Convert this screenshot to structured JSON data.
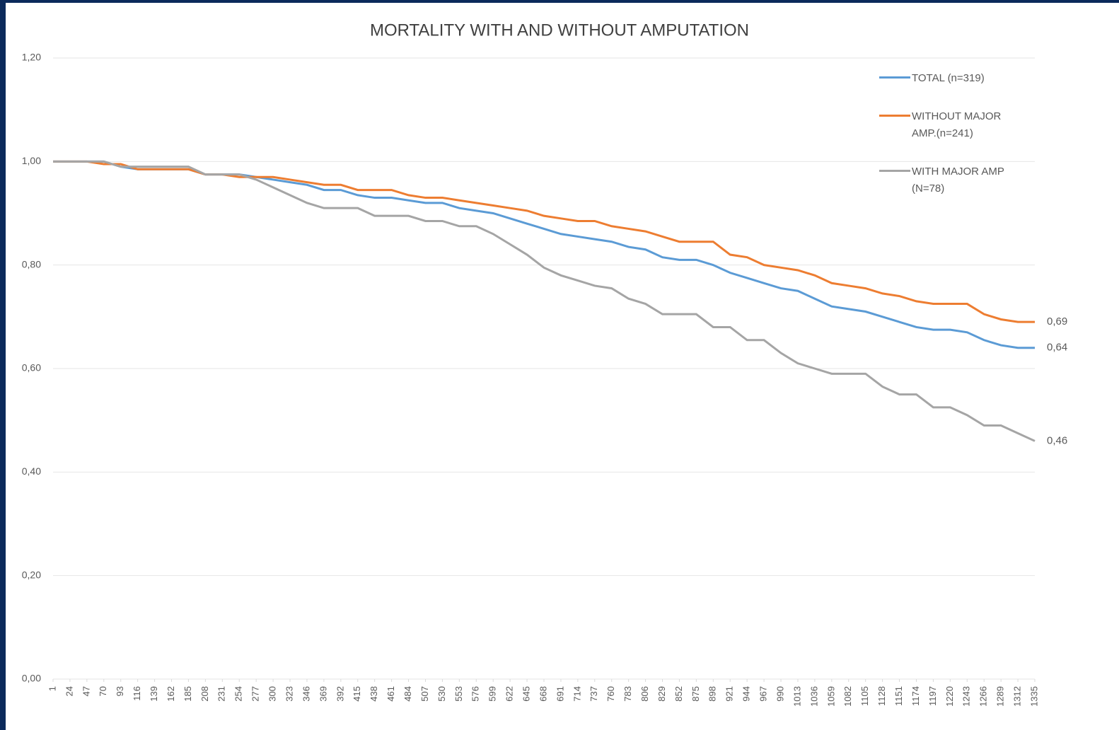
{
  "chart_data": {
    "type": "line",
    "title": "MORTALITY WITH AND WITHOUT AMPUTATION",
    "x": [
      1,
      24,
      47,
      70,
      93,
      116,
      139,
      162,
      185,
      208,
      231,
      254,
      277,
      300,
      323,
      346,
      369,
      392,
      415,
      438,
      461,
      484,
      507,
      530,
      553,
      576,
      599,
      622,
      645,
      668,
      691,
      714,
      737,
      760,
      783,
      806,
      829,
      852,
      875,
      898,
      921,
      944,
      967,
      990,
      1013,
      1036,
      1059,
      1082,
      1105,
      1128,
      1151,
      1174,
      1197,
      1220,
      1243,
      1266,
      1289,
      1312,
      1335
    ],
    "xlim": [
      1,
      1335
    ],
    "ylim": [
      0,
      1.2
    ],
    "yticks": [
      {
        "value": 0,
        "label": "0,00"
      },
      {
        "value": 0.2,
        "label": "0,20"
      },
      {
        "value": 0.4,
        "label": "0,40"
      },
      {
        "value": 0.6,
        "label": "0,60"
      },
      {
        "value": 0.8,
        "label": "0,80"
      },
      {
        "value": 1.0,
        "label": "1,00"
      },
      {
        "value": 1.2,
        "label": "1,20"
      }
    ],
    "grid": true,
    "legend": "right",
    "series": [
      {
        "name": "TOTAL (n=319)",
        "color": "#5b9bd5",
        "values": [
          1,
          1,
          1,
          1,
          0.99,
          0.985,
          0.985,
          0.985,
          0.985,
          0.975,
          0.975,
          0.975,
          0.97,
          0.965,
          0.96,
          0.955,
          0.945,
          0.945,
          0.935,
          0.93,
          0.93,
          0.925,
          0.92,
          0.92,
          0.91,
          0.905,
          0.9,
          0.89,
          0.88,
          0.87,
          0.86,
          0.855,
          0.85,
          0.845,
          0.835,
          0.83,
          0.815,
          0.81,
          0.81,
          0.8,
          0.785,
          0.775,
          0.765,
          0.755,
          0.75,
          0.735,
          0.72,
          0.715,
          0.71,
          0.7,
          0.69,
          0.68,
          0.675,
          0.675,
          0.67,
          0.655,
          0.645,
          0.64,
          0.64
        ],
        "value_labels": [
          null,
          null,
          null,
          null,
          null,
          null,
          null,
          null,
          null,
          null,
          null,
          null,
          null,
          null,
          null,
          null,
          null,
          null,
          null,
          null,
          null,
          null,
          null,
          null,
          null,
          null,
          null,
          null,
          null,
          null,
          null,
          null,
          null,
          null,
          null,
          null,
          null,
          null,
          null,
          null,
          null,
          null,
          null,
          null,
          null,
          null,
          null,
          null,
          null,
          null,
          null,
          null,
          null,
          null,
          null,
          null,
          null,
          null,
          "0,64"
        ]
      },
      {
        "name": "WITHOUT MAJOR AMP.(n=241)",
        "color": "#ed7d31",
        "values": [
          1,
          1,
          1,
          0.995,
          0.995,
          0.985,
          0.985,
          0.985,
          0.985,
          0.975,
          0.975,
          0.97,
          0.97,
          0.97,
          0.965,
          0.96,
          0.955,
          0.955,
          0.945,
          0.945,
          0.945,
          0.935,
          0.93,
          0.93,
          0.925,
          0.92,
          0.915,
          0.91,
          0.905,
          0.895,
          0.89,
          0.885,
          0.885,
          0.875,
          0.87,
          0.865,
          0.855,
          0.845,
          0.845,
          0.845,
          0.82,
          0.815,
          0.8,
          0.795,
          0.79,
          0.78,
          0.765,
          0.76,
          0.755,
          0.745,
          0.74,
          0.73,
          0.725,
          0.725,
          0.725,
          0.705,
          0.695,
          0.69,
          0.69
        ],
        "value_labels": [
          null,
          null,
          null,
          null,
          null,
          null,
          null,
          null,
          null,
          null,
          null,
          null,
          null,
          null,
          null,
          null,
          null,
          null,
          null,
          null,
          null,
          null,
          null,
          null,
          null,
          null,
          null,
          null,
          null,
          null,
          null,
          null,
          null,
          null,
          null,
          null,
          null,
          null,
          null,
          null,
          null,
          null,
          null,
          null,
          null,
          null,
          null,
          null,
          null,
          null,
          null,
          null,
          null,
          null,
          null,
          null,
          null,
          null,
          "0,69"
        ]
      },
      {
        "name": "WITH MAJOR AMP (N=78)",
        "color": "#a5a5a5",
        "values": [
          1,
          1,
          1,
          1,
          0.99,
          0.99,
          0.99,
          0.99,
          0.99,
          0.975,
          0.975,
          0.975,
          0.965,
          0.95,
          0.935,
          0.92,
          0.91,
          0.91,
          0.91,
          0.895,
          0.895,
          0.895,
          0.885,
          0.885,
          0.875,
          0.875,
          0.86,
          0.84,
          0.82,
          0.795,
          0.78,
          0.77,
          0.76,
          0.755,
          0.735,
          0.725,
          0.705,
          0.705,
          0.705,
          0.68,
          0.68,
          0.655,
          0.655,
          0.63,
          0.61,
          0.6,
          0.59,
          0.59,
          0.59,
          0.565,
          0.55,
          0.55,
          0.525,
          0.525,
          0.51,
          0.49,
          0.49,
          0.475,
          0.46
        ],
        "value_labels": [
          null,
          null,
          null,
          null,
          null,
          null,
          null,
          null,
          null,
          null,
          null,
          null,
          null,
          null,
          null,
          null,
          null,
          null,
          null,
          null,
          null,
          null,
          null,
          null,
          null,
          null,
          null,
          null,
          null,
          null,
          null,
          null,
          null,
          null,
          null,
          null,
          null,
          null,
          null,
          null,
          null,
          null,
          null,
          null,
          null,
          null,
          null,
          null,
          null,
          null,
          null,
          null,
          null,
          null,
          null,
          null,
          null,
          null,
          "0,46"
        ]
      }
    ]
  }
}
